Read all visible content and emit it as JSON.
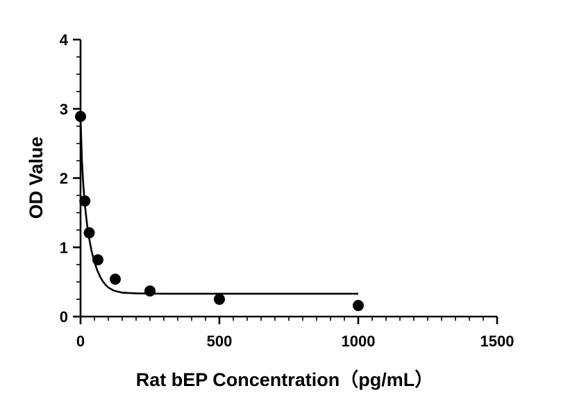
{
  "chart_data": {
    "type": "scatter",
    "xlabel": "Rat bEP Concentration（pg/mL）",
    "ylabel": "OD Value",
    "xlim": [
      0,
      1500
    ],
    "ylim": [
      0,
      4
    ],
    "x_ticks": [
      0,
      500,
      1000,
      1500
    ],
    "y_ticks": [
      0,
      1,
      2,
      3,
      4
    ],
    "x_tick_labels": [
      "0",
      "500",
      "1000",
      "1500"
    ],
    "y_tick_labels": [
      "0",
      "1",
      "2",
      "3",
      "4"
    ],
    "x_minor_step": 50,
    "y_minor_step": 0.25,
    "grid": false,
    "legend": "none",
    "series": [
      {
        "points": [
          {
            "x": 0,
            "y": 2.89
          },
          {
            "x": 15.6,
            "y": 1.67
          },
          {
            "x": 31.25,
            "y": 1.21
          },
          {
            "x": 62.5,
            "y": 0.82
          },
          {
            "x": 125,
            "y": 0.54
          },
          {
            "x": 250,
            "y": 0.37
          },
          {
            "x": 500,
            "y": 0.25
          },
          {
            "x": 1000,
            "y": 0.16
          }
        ],
        "fit_curve": {
          "x": [
            0,
            5,
            10,
            15,
            20,
            25,
            30,
            40,
            50,
            60,
            70,
            80,
            90,
            100,
            120,
            150,
            200,
            300,
            500,
            800,
            1000
          ],
          "y": [
            2.88,
            2.25,
            1.9,
            1.65,
            1.45,
            1.28,
            1.15,
            0.94,
            0.79,
            0.67,
            0.58,
            0.51,
            0.46,
            0.42,
            0.375,
            0.345,
            0.335,
            0.33,
            0.33,
            0.33,
            0.33
          ]
        }
      }
    ],
    "colors": {
      "marks": "#000000",
      "axes": "#000000",
      "background": "#ffffff"
    }
  }
}
